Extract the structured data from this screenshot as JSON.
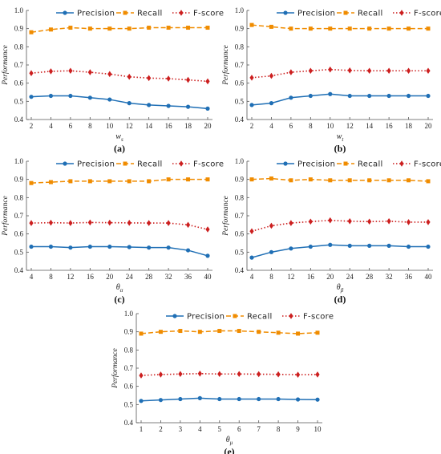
{
  "legend": [
    "Precision",
    "Recall",
    "F-score"
  ],
  "ylabel": "Performance",
  "colors": {
    "precision": "#1f6fb5",
    "recall": "#f08c00",
    "fscore": "#cc1f1f"
  },
  "chart_data": [
    {
      "type": "line",
      "panel": "(a)",
      "caption": "(a)",
      "xlabel": "w",
      "xlabel_sub": "s",
      "x": [
        2,
        4,
        6,
        8,
        10,
        12,
        14,
        16,
        18,
        20
      ],
      "ylim": [
        0.4,
        1.0
      ],
      "yticks": [
        0.4,
        0.5,
        0.6,
        0.7,
        0.8,
        0.9,
        1.0
      ],
      "series": [
        {
          "name": "Precision",
          "values": [
            0.525,
            0.53,
            0.53,
            0.52,
            0.51,
            0.49,
            0.48,
            0.475,
            0.47,
            0.46
          ]
        },
        {
          "name": "Recall",
          "values": [
            0.88,
            0.895,
            0.905,
            0.9,
            0.9,
            0.9,
            0.905,
            0.905,
            0.905,
            0.905
          ]
        },
        {
          "name": "F-score",
          "values": [
            0.655,
            0.665,
            0.668,
            0.66,
            0.65,
            0.635,
            0.628,
            0.625,
            0.618,
            0.61
          ]
        }
      ]
    },
    {
      "type": "line",
      "panel": "(b)",
      "caption": "(b)",
      "xlabel": "w",
      "xlabel_sub": "t",
      "x": [
        2,
        4,
        6,
        8,
        10,
        12,
        14,
        16,
        18,
        20
      ],
      "ylim": [
        0.4,
        1.0
      ],
      "yticks": [
        0.4,
        0.5,
        0.6,
        0.7,
        0.8,
        0.9,
        1.0
      ],
      "series": [
        {
          "name": "Precision",
          "values": [
            0.48,
            0.49,
            0.52,
            0.53,
            0.54,
            0.53,
            0.53,
            0.53,
            0.53,
            0.53
          ]
        },
        {
          "name": "Recall",
          "values": [
            0.92,
            0.91,
            0.9,
            0.9,
            0.9,
            0.9,
            0.9,
            0.9,
            0.9,
            0.9
          ]
        },
        {
          "name": "F-score",
          "values": [
            0.63,
            0.64,
            0.66,
            0.668,
            0.675,
            0.67,
            0.668,
            0.668,
            0.668,
            0.668
          ]
        }
      ]
    },
    {
      "type": "line",
      "panel": "(c)",
      "caption": "(c)",
      "xlabel": "θ",
      "xlabel_sub": "α",
      "x": [
        4,
        8,
        12,
        16,
        20,
        24,
        28,
        32,
        36,
        40
      ],
      "ylim": [
        0.4,
        1.0
      ],
      "yticks": [
        0.4,
        0.5,
        0.6,
        0.7,
        0.8,
        0.9,
        1.0
      ],
      "series": [
        {
          "name": "Precision",
          "values": [
            0.53,
            0.53,
            0.525,
            0.53,
            0.53,
            0.528,
            0.525,
            0.525,
            0.51,
            0.48
          ]
        },
        {
          "name": "Recall",
          "values": [
            0.88,
            0.885,
            0.89,
            0.89,
            0.89,
            0.89,
            0.89,
            0.9,
            0.9,
            0.9
          ]
        },
        {
          "name": "F-score",
          "values": [
            0.66,
            0.662,
            0.66,
            0.663,
            0.662,
            0.661,
            0.66,
            0.66,
            0.65,
            0.625
          ]
        }
      ]
    },
    {
      "type": "line",
      "panel": "(d)",
      "caption": "(d)",
      "xlabel": "θ",
      "xlabel_sub": "β",
      "x": [
        4,
        8,
        12,
        16,
        20,
        24,
        28,
        32,
        36,
        40
      ],
      "ylim": [
        0.4,
        1.0
      ],
      "yticks": [
        0.4,
        0.5,
        0.6,
        0.7,
        0.8,
        0.9,
        1.0
      ],
      "series": [
        {
          "name": "Precision",
          "values": [
            0.47,
            0.5,
            0.52,
            0.53,
            0.54,
            0.535,
            0.535,
            0.535,
            0.53,
            0.53
          ]
        },
        {
          "name": "Recall",
          "values": [
            0.9,
            0.905,
            0.895,
            0.9,
            0.895,
            0.895,
            0.895,
            0.895,
            0.895,
            0.89
          ]
        },
        {
          "name": "F-score",
          "values": [
            0.615,
            0.645,
            0.66,
            0.668,
            0.675,
            0.67,
            0.668,
            0.67,
            0.665,
            0.665
          ]
        }
      ]
    },
    {
      "type": "line",
      "panel": "(e)",
      "caption": "(e)",
      "xlabel": "θ",
      "xlabel_sub": "μ",
      "x": [
        1,
        2,
        3,
        4,
        5,
        6,
        7,
        8,
        9,
        10
      ],
      "ylim": [
        0.4,
        1.0
      ],
      "yticks": [
        0.4,
        0.5,
        0.6,
        0.7,
        0.8,
        0.9,
        1.0
      ],
      "series": [
        {
          "name": "Precision",
          "values": [
            0.52,
            0.525,
            0.53,
            0.535,
            0.53,
            0.53,
            0.53,
            0.53,
            0.528,
            0.527
          ]
        },
        {
          "name": "Recall",
          "values": [
            0.89,
            0.9,
            0.905,
            0.9,
            0.905,
            0.905,
            0.9,
            0.895,
            0.89,
            0.895
          ]
        },
        {
          "name": "F-score",
          "values": [
            0.66,
            0.665,
            0.668,
            0.67,
            0.668,
            0.668,
            0.667,
            0.666,
            0.664,
            0.665
          ]
        }
      ]
    }
  ]
}
